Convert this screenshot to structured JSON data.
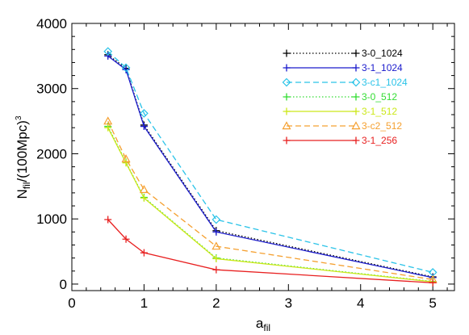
{
  "chart_data": {
    "type": "line",
    "xlabel_main": "a",
    "xlabel_sub": "fil",
    "ylabel_main": "N",
    "ylabel_sub": "fil",
    "ylabel_rest": "/(100Mpc)",
    "ylabel_sup": "3",
    "xlim": [
      0,
      5.3
    ],
    "ylim": [
      -100,
      4000
    ],
    "x_ticks": [
      0,
      1,
      2,
      3,
      4,
      5
    ],
    "y_ticks": [
      0,
      1000,
      2000,
      3000,
      4000
    ],
    "grid": false,
    "legend_position": "top-right",
    "series": [
      {
        "name": "3-0_1024",
        "color": "#000000",
        "dash": "1.5,2.5",
        "marker": "plus",
        "x": [
          0.5,
          0.75,
          1,
          2,
          5
        ],
        "y": [
          3520,
          3310,
          2440,
          820,
          110
        ]
      },
      {
        "name": "3-1_1024",
        "color": "#1a1acc",
        "dash": "",
        "marker": "plus",
        "x": [
          0.5,
          0.75,
          1,
          2,
          5
        ],
        "y": [
          3500,
          3290,
          2420,
          800,
          100
        ]
      },
      {
        "name": "3-c1_1024",
        "color": "#2ac3e8",
        "dash": "7,4",
        "marker": "diamond",
        "x": [
          0.5,
          0.75,
          1,
          2,
          5
        ],
        "y": [
          3570,
          3320,
          2620,
          990,
          180
        ]
      },
      {
        "name": "3-0_512",
        "color": "#33dd33",
        "dash": "1.5,2.5",
        "marker": "plus",
        "x": [
          0.5,
          0.75,
          1,
          2,
          5
        ],
        "y": [
          2420,
          1870,
          1330,
          400,
          40
        ]
      },
      {
        "name": "3-1_512",
        "color": "#cce81a",
        "dash": "",
        "marker": "plus",
        "x": [
          0.5,
          0.75,
          1,
          2,
          5
        ],
        "y": [
          2400,
          1860,
          1320,
          390,
          35
        ]
      },
      {
        "name": "3-c2_512",
        "color": "#f5a030",
        "dash": "7,4",
        "marker": "triangle",
        "x": [
          0.5,
          0.75,
          1,
          2,
          5
        ],
        "y": [
          2500,
          1920,
          1450,
          580,
          70
        ]
      },
      {
        "name": "3-1_256",
        "color": "#e82020",
        "dash": "",
        "marker": "plus",
        "x": [
          0.5,
          0.75,
          1,
          2,
          5
        ],
        "y": [
          990,
          690,
          480,
          220,
          20
        ]
      }
    ]
  }
}
